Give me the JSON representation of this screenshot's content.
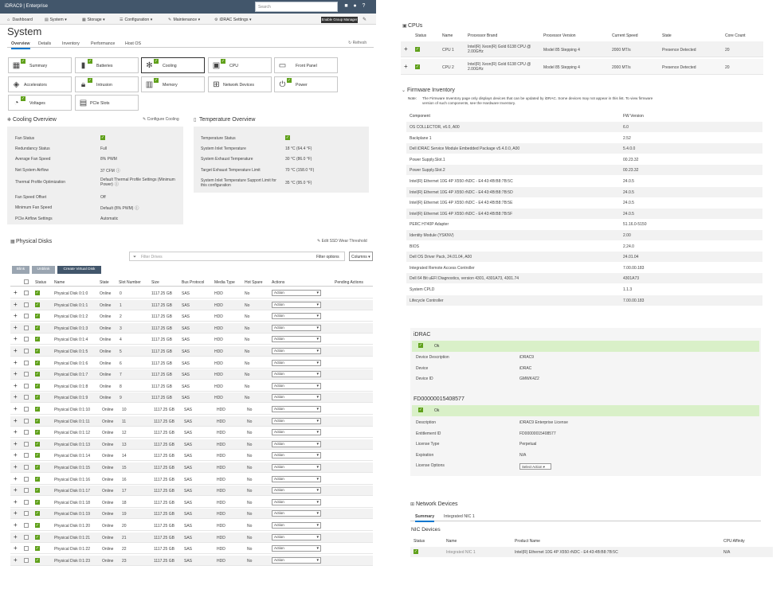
{
  "header": {
    "brand": "iDRAC9 | Enterprise",
    "search_placeholder": "Search",
    "group_manager": "Enable Group Manager"
  },
  "nav": [
    "Dashboard",
    "System",
    "Storage",
    "Configuration",
    "Maintenance",
    "iDRAC Settings"
  ],
  "page": {
    "title": "System",
    "refresh": "Refresh"
  },
  "subtabs": [
    "Overview",
    "Details",
    "Inventory",
    "Performance",
    "Host OS"
  ],
  "tiles": [
    "Summary",
    "Batteries",
    "Cooling",
    "CPU",
    "Front Panel",
    "Accelerators",
    "Intrusion",
    "Memory",
    "Network Devices",
    "Power",
    "Voltages",
    "PCIe Slots"
  ],
  "cooling": {
    "title": "Cooling Overview",
    "configure": "Configure Cooling",
    "rows": [
      {
        "k": "Fan Status",
        "v": ""
      },
      {
        "k": "Redundancy Status",
        "v": "Full"
      },
      {
        "k": "Average Fan Speed",
        "v": "8% PWM"
      },
      {
        "k": "Net System Airflow",
        "v": "37 CFM"
      },
      {
        "k": "Thermal Profile Optimization",
        "v": "Default Thermal Profile Settings (Minimum Power)"
      },
      {
        "k": "Fan Speed Offset",
        "v": "Off"
      },
      {
        "k": "Minimum Fan Speed",
        "v": "Default (8% PWM)"
      },
      {
        "k": "PCIe Airflow Settings",
        "v": "Automatic"
      }
    ]
  },
  "temperature": {
    "title": "Temperature Overview",
    "rows": [
      {
        "k": "Temperature Status",
        "v": ""
      },
      {
        "k": "System Inlet Temperature",
        "v": "18 °C (64.4 °F)"
      },
      {
        "k": "System Exhaust Temperature",
        "v": "30 °C (86.0 °F)"
      },
      {
        "k": "Target Exhaust Temperature Limit",
        "v": "70 °C (158.0 °F)"
      },
      {
        "k": "System Inlet Temperature Support Limit for this configuration",
        "v": "35 °C (95.0 °F)"
      }
    ]
  },
  "disks": {
    "title": "Physical Disks",
    "edit_ssd": "Edit SSD Wear Threshold",
    "filter_placeholder": "Filter Drives",
    "filter_options": "Filter options",
    "columns": "Columns",
    "buttons": [
      "Blink",
      "Unblink",
      "Create Virtual Disk"
    ],
    "headers": [
      "Status",
      "Name",
      "State",
      "Slot Number",
      "Size",
      "Bus Protocol",
      "Media Type",
      "Hot Spare",
      "Actions",
      "Pending Actions"
    ],
    "action_label": "Action",
    "rows": [
      [
        "Physical Disk 0:1:0",
        "Online",
        "0",
        "1117.25 GB",
        "SAS",
        "HDD",
        "No"
      ],
      [
        "Physical Disk 0:1:1",
        "Online",
        "1",
        "1117.25 GB",
        "SAS",
        "HDD",
        "No"
      ],
      [
        "Physical Disk 0:1:2",
        "Online",
        "2",
        "1117.25 GB",
        "SAS",
        "HDD",
        "No"
      ],
      [
        "Physical Disk 0:1:3",
        "Online",
        "3",
        "1117.25 GB",
        "SAS",
        "HDD",
        "No"
      ],
      [
        "Physical Disk 0:1:4",
        "Online",
        "4",
        "1117.25 GB",
        "SAS",
        "HDD",
        "No"
      ],
      [
        "Physical Disk 0:1:5",
        "Online",
        "5",
        "1117.25 GB",
        "SAS",
        "HDD",
        "No"
      ],
      [
        "Physical Disk 0:1:6",
        "Online",
        "6",
        "1117.25 GB",
        "SAS",
        "HDD",
        "No"
      ],
      [
        "Physical Disk 0:1:7",
        "Online",
        "7",
        "1117.25 GB",
        "SAS",
        "HDD",
        "No"
      ],
      [
        "Physical Disk 0:1:8",
        "Online",
        "8",
        "1117.25 GB",
        "SAS",
        "HDD",
        "No"
      ],
      [
        "Physical Disk 0:1:9",
        "Online",
        "9",
        "1117.25 GB",
        "SAS",
        "HDD",
        "No"
      ],
      [
        "Physical Disk 0:1:10",
        "Online",
        "10",
        "1117.25 GB",
        "SAS",
        "HDD",
        "No"
      ],
      [
        "Physical Disk 0:1:11",
        "Online",
        "11",
        "1117.25 GB",
        "SAS",
        "HDD",
        "No"
      ],
      [
        "Physical Disk 0:1:12",
        "Online",
        "12",
        "1117.25 GB",
        "SAS",
        "HDD",
        "No"
      ],
      [
        "Physical Disk 0:1:13",
        "Online",
        "13",
        "1117.25 GB",
        "SAS",
        "HDD",
        "No"
      ],
      [
        "Physical Disk 0:1:14",
        "Online",
        "14",
        "1117.25 GB",
        "SAS",
        "HDD",
        "No"
      ],
      [
        "Physical Disk 0:1:15",
        "Online",
        "15",
        "1117.25 GB",
        "SAS",
        "HDD",
        "No"
      ],
      [
        "Physical Disk 0:1:16",
        "Online",
        "16",
        "1117.25 GB",
        "SAS",
        "HDD",
        "No"
      ],
      [
        "Physical Disk 0:1:17",
        "Online",
        "17",
        "1117.25 GB",
        "SAS",
        "HDD",
        "No"
      ],
      [
        "Physical Disk 0:1:18",
        "Online",
        "18",
        "1117.25 GB",
        "SAS",
        "HDD",
        "No"
      ],
      [
        "Physical Disk 0:1:19",
        "Online",
        "19",
        "1117.25 GB",
        "SAS",
        "HDD",
        "No"
      ],
      [
        "Physical Disk 0:1:20",
        "Online",
        "20",
        "1117.25 GB",
        "SAS",
        "HDD",
        "No"
      ],
      [
        "Physical Disk 0:1:21",
        "Online",
        "21",
        "1117.25 GB",
        "SAS",
        "HDD",
        "No"
      ],
      [
        "Physical Disk 0:1:22",
        "Online",
        "22",
        "1117.25 GB",
        "SAS",
        "HDD",
        "No"
      ],
      [
        "Physical Disk 0:1:23",
        "Online",
        "23",
        "1117.25 GB",
        "SAS",
        "HDD",
        "No"
      ]
    ]
  },
  "cpus": {
    "title": "CPUs",
    "headers": [
      "Status",
      "Name",
      "Processor Brand",
      "Processor Version",
      "Current Speed",
      "State",
      "Core Count"
    ],
    "rows": [
      [
        "CPU 1",
        "Intel(R) Xeon(R) Gold 6138 CPU @ 2.00GHz",
        "Model 85 Stepping 4",
        "2000 MT/s",
        "Presence Detected",
        "20"
      ],
      [
        "CPU 2",
        "Intel(R) Xeon(R) Gold 6138 CPU @ 2.00GHz",
        "Model 85 Stepping 4",
        "2000 MT/s",
        "Presence Detected",
        "20"
      ]
    ]
  },
  "firmware": {
    "title": "Firmware Inventory",
    "note_label": "Note:",
    "note": "The Firmware Inventory page only displays devices that can be updated by iDRAC. Some devices may not appear in this list. To view firmware version of such components, see the Hardware Inventory.",
    "headers": [
      "Component",
      "FW Version"
    ],
    "rows": [
      [
        "OS COLLECTOR, v6.0, A00",
        "6.0"
      ],
      [
        "Backplane 1",
        "2.52"
      ],
      [
        "Dell iDRAC Service Module Embedded Package v5.4.0.0, A00",
        "5.4.0.0"
      ],
      [
        "Power Supply.Slot.1",
        "00.23.32"
      ],
      [
        "Power Supply.Slot.2",
        "00.23.32"
      ],
      [
        "Intel(R) Ethernet 10G 4P X550 rNDC - E4:43:4B:B8:7B:5C",
        "24.0.5"
      ],
      [
        "Intel(R) Ethernet 10G 4P X550 rNDC - E4:43:4B:B8:7B:5D",
        "24.0.5"
      ],
      [
        "Intel(R) Ethernet 10G 4P X550 rNDC - E4:43:4B:B8:7B:5E",
        "24.0.5"
      ],
      [
        "Intel(R) Ethernet 10G 4P X550 rNDC - E4:43:4B:B8:7B:5F",
        "24.0.5"
      ],
      [
        "PERC H740P Adapter",
        "51.16.0-5150"
      ],
      [
        "Identity Module (YSKNV)",
        "2.00"
      ],
      [
        "BIOS",
        "2.24.0"
      ],
      [
        "Dell OS Driver Pack, 24.01.04, A00",
        "24.01.04"
      ],
      [
        "Integrated Remote Access Controller",
        "7.00.00.183"
      ],
      [
        "Dell 64 Bit uEFI Diagnostics, version 4301, 4301A73, 4301.74",
        "4301A73"
      ],
      [
        "System CPLD",
        "1.1.3"
      ],
      [
        "Lifecycle Controller",
        "7.00.00.183"
      ]
    ]
  },
  "idrac": {
    "title": "iDRAC",
    "status": "Ok",
    "rows": [
      [
        "Device Description",
        "iDRAC9"
      ],
      [
        "Device",
        "iDRAC"
      ],
      [
        "Device ID",
        "GMWK4Z2"
      ]
    ]
  },
  "license": {
    "title": "FD00000015408577",
    "status": "Ok",
    "rows": [
      [
        "Description",
        "iDRAC9 Enterprise License"
      ],
      [
        "Entitlement ID",
        "FD00000015408577"
      ],
      [
        "License Type",
        "Perpetual"
      ],
      [
        "Expiration",
        "N/A"
      ],
      [
        "License Options",
        ""
      ]
    ],
    "select_action": "Select Action"
  },
  "network": {
    "title": "Network Devices",
    "tabs": [
      "Summary",
      "Integrated NIC 1"
    ],
    "nic_title": "NIC Devices",
    "headers": [
      "Status",
      "Name",
      "Product Name",
      "CPU Affinity"
    ],
    "rows": [
      [
        "Integrated NIC 1",
        "Intel(R) Ethernet 10G 4P X550 rNDC - E4:43:4B:B8:7B:5C",
        "N/A"
      ]
    ]
  },
  "colors": {
    "header_bg": "#42566b",
    "ok_green": "#5fa01a",
    "ok_bar": "#d9f0c8",
    "active_tab": "#0076ce"
  }
}
